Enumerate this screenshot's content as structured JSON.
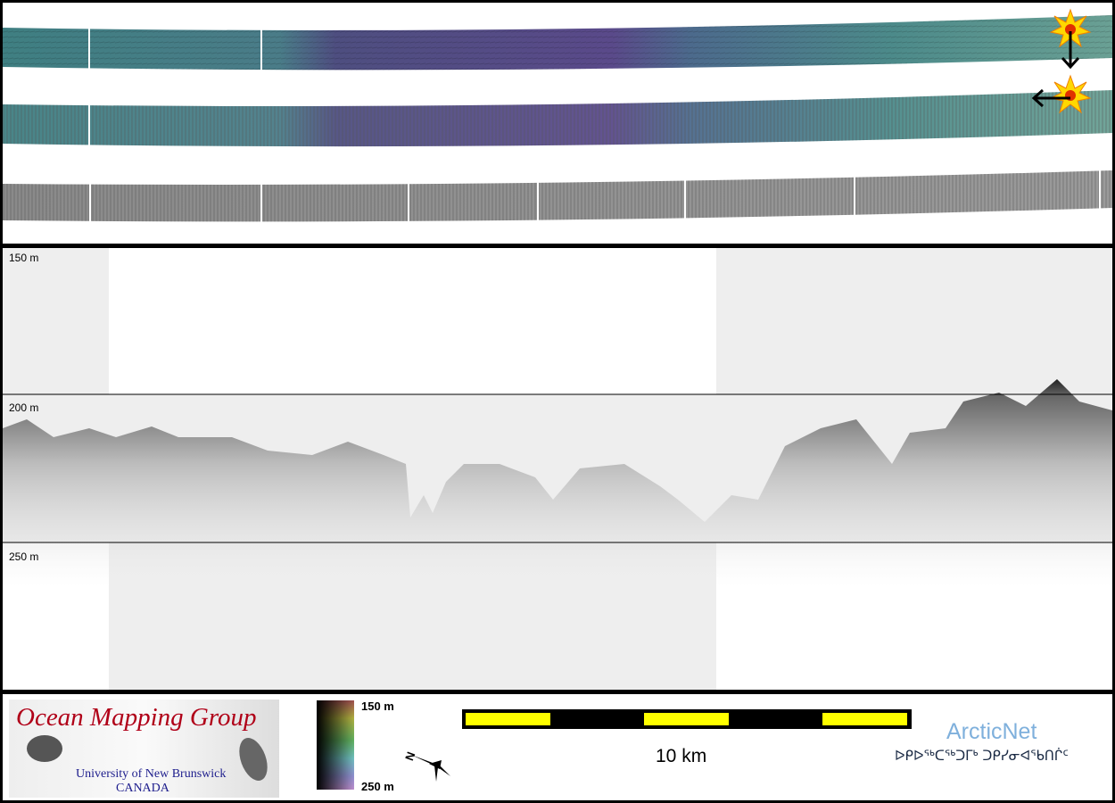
{
  "profile": {
    "depth_labels": [
      "150 m",
      "200 m",
      "250 m"
    ]
  },
  "legend": {
    "colorbar_top": "150 m",
    "colorbar_bottom": "250 m",
    "compass_letter": "N",
    "scale_label": "10 km"
  },
  "logos": {
    "omg_title": "Ocean Mapping Group",
    "omg_university": "University of New Brunswick",
    "omg_country": "CANADA",
    "arcticnet_name": "ArcticNet",
    "arcticnet_syllabics": "ᐅᑭᐅᖅᑕᖅᑐᒥᒃ ᑐᑭᓯᓂᐊᖃᑎᒌᑦ"
  },
  "colors": {
    "scale_yellow": "#ffff00",
    "omg_red": "#b00018",
    "omg_blue": "#1c1c8c",
    "arcticnet_blue": "#7fb0dc",
    "profile_gray": "#eeeeee"
  },
  "icons": [
    "sun-burst-icon",
    "arrow-down-icon",
    "arrow-left-icon",
    "north-arrow-icon"
  ]
}
